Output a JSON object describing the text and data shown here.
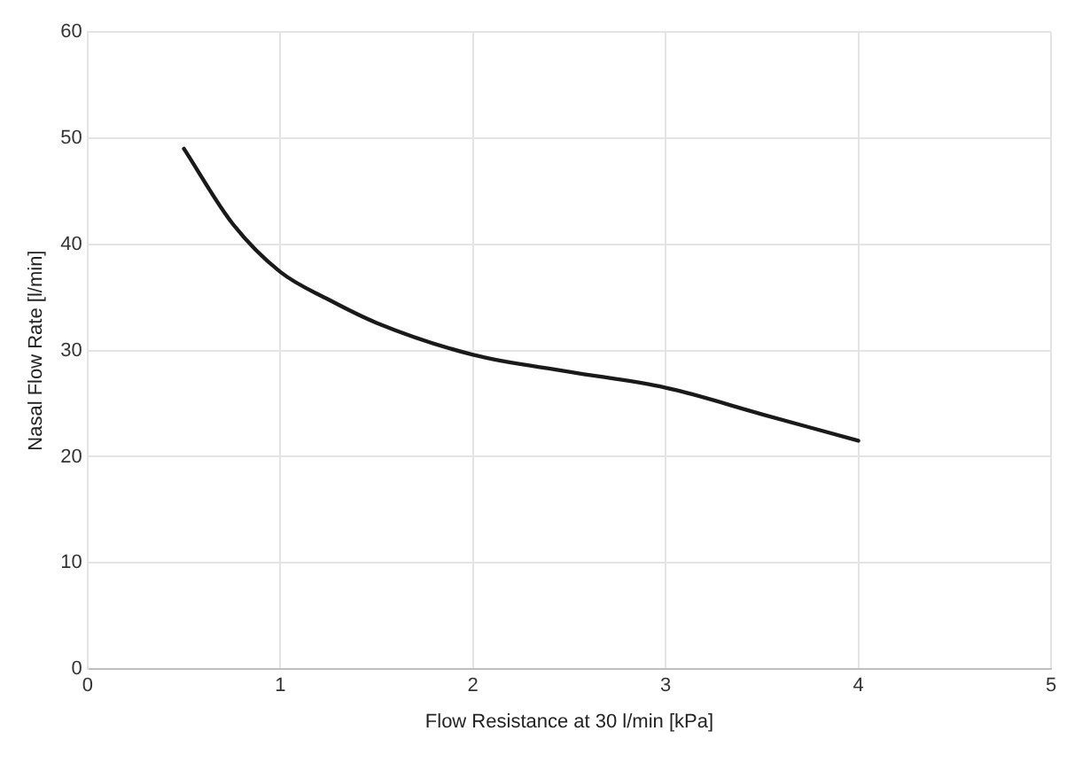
{
  "chart_data": {
    "type": "line",
    "xlabel": "Flow Resistance at 30 l/min [kPa]",
    "ylabel": "Nasal Flow Rate [l/min]",
    "x": [
      0.5,
      0.75,
      1,
      1.25,
      1.5,
      2,
      2.5,
      3,
      3.5,
      4
    ],
    "series": [
      {
        "color": "#1a1a1a",
        "values": [
          49,
          42,
          37.4,
          34.8,
          32.6,
          29.6,
          28,
          26.5,
          24,
          21.5
        ]
      }
    ],
    "xlim": [
      0,
      5
    ],
    "xticks": [
      0,
      1,
      2,
      3,
      4,
      5
    ],
    "ylim": [
      0,
      60
    ],
    "yticks": [
      0,
      10,
      20,
      30,
      40,
      50,
      60
    ],
    "grid": true,
    "legend": false,
    "marker": "none",
    "line_style": "solid"
  }
}
